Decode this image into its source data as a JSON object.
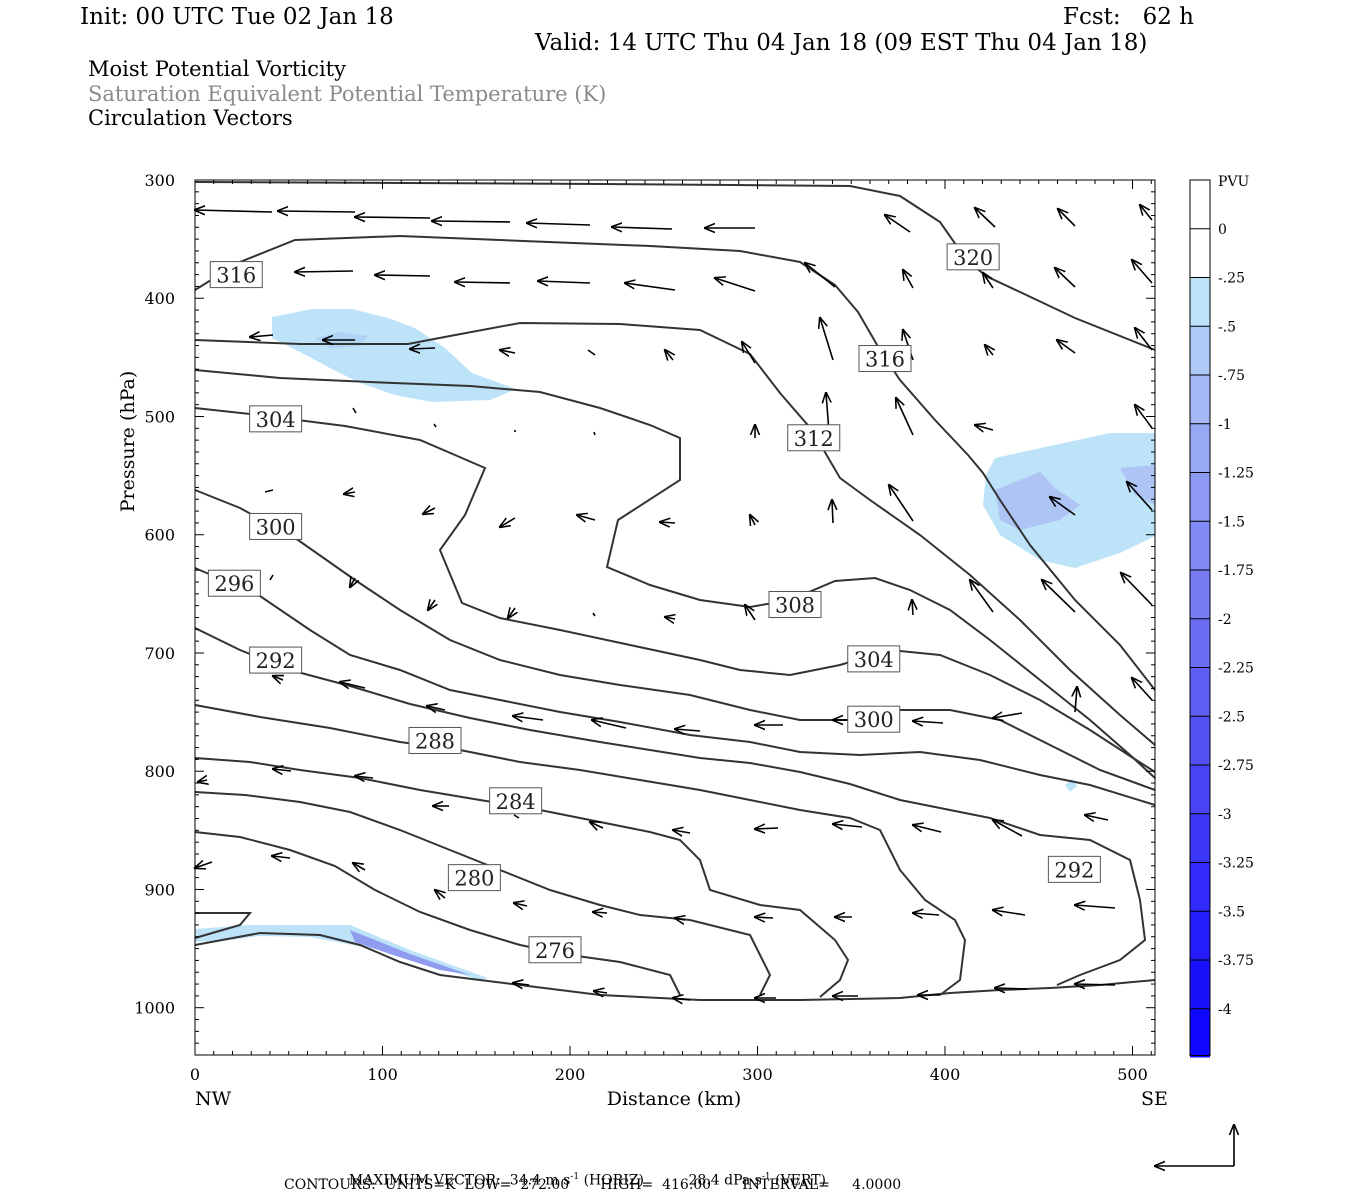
{
  "header": {
    "init": "Init: 00 UTC Tue 02 Jan 18",
    "fcst": "Fcst:   62 h",
    "valid": "Valid: 14 UTC Thu 04 Jan 18 (09 EST Thu 04 Jan 18)",
    "fields": [
      "Moist Potential Vorticity",
      "Saturation Equivalent Potential Temperature (K)",
      "Circulation Vectors"
    ]
  },
  "footer": {
    "max_vector": "MAXIMUM VECTOR:  34.4 m s",
    "horiz": "(HORIZ)",
    "vert_val": "28.4 dPa s",
    "vert": "(VERT)",
    "exp": "-1",
    "contours": "CONTOURS:  UNITS=K  LOW=  272.00       HIGH=  416.00       INTERVAL=     4.0000"
  },
  "colors": {
    "contour": "#333333",
    "vector": "#000000",
    "pv_light": "#bde3f8",
    "pv_mid": "#a8b8f4"
  },
  "chart_data": {
    "type": "contour",
    "xlabel": "Distance (km)",
    "ylabel": "Pressure (hPa)",
    "xlim": [
      0,
      512
    ],
    "ylim": [
      1040,
      300
    ],
    "x_ticks": [
      0,
      100,
      200,
      300,
      400,
      500
    ],
    "y_ticks": [
      300,
      400,
      500,
      600,
      700,
      800,
      900,
      1000
    ],
    "x_end_labels": {
      "left": "NW",
      "right": "SE"
    },
    "contour_labels": [
      {
        "v": "316",
        "x": 22,
        "p": 380
      },
      {
        "v": "320",
        "x": 415,
        "p": 365
      },
      {
        "v": "316",
        "x": 368,
        "p": 451
      },
      {
        "v": "312",
        "x": 330,
        "p": 518
      },
      {
        "v": "304",
        "x": 43,
        "p": 502
      },
      {
        "v": "300",
        "x": 43,
        "p": 593
      },
      {
        "v": "296",
        "x": 21,
        "p": 641
      },
      {
        "v": "308",
        "x": 320,
        "p": 659
      },
      {
        "v": "304",
        "x": 362,
        "p": 705
      },
      {
        "v": "292",
        "x": 43,
        "p": 706
      },
      {
        "v": "300",
        "x": 362,
        "p": 756
      },
      {
        "v": "288",
        "x": 128,
        "p": 774
      },
      {
        "v": "284",
        "x": 171,
        "p": 825
      },
      {
        "v": "292",
        "x": 469,
        "p": 883
      },
      {
        "v": "280",
        "x": 149,
        "p": 890
      },
      {
        "v": "276",
        "x": 192,
        "p": 951
      }
    ],
    "pv_scale": {
      "unit": "PVU",
      "labels": [
        "0",
        "-.25",
        "-.5",
        "-.75",
        "-1",
        "-1.25",
        "-1.5",
        "-1.75",
        "-2",
        "-2.25",
        "-2.5",
        "-2.75",
        "-3",
        "-3.25",
        "-3.5",
        "-3.75",
        "-4"
      ]
    },
    "max_vector": {
      "horiz_m_s": 34.4,
      "vert_dPa_s": 28.4
    },
    "contour_info": {
      "units": "K",
      "low": 272.0,
      "high": 416.0,
      "interval": 4.0
    }
  }
}
